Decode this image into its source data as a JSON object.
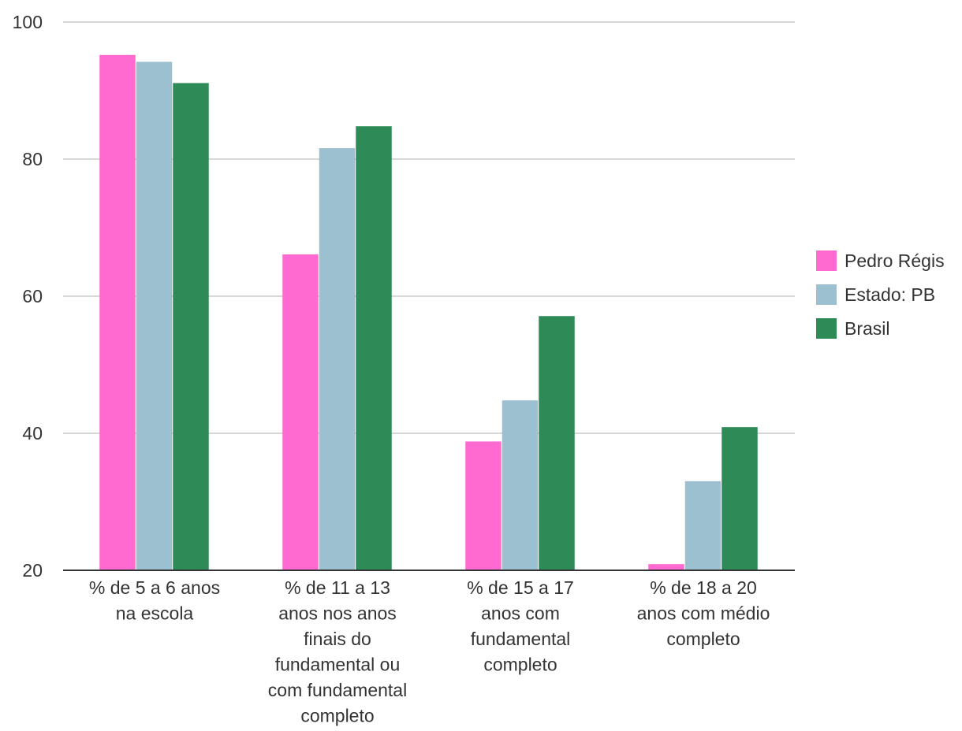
{
  "chart_data": {
    "type": "bar",
    "title": "",
    "xlabel": "",
    "ylabel": "",
    "ylim": [
      20,
      100
    ],
    "yticks": [
      "20",
      "40",
      "60",
      "80",
      "100"
    ],
    "grid": true,
    "legend_position": "right",
    "categories": [
      [
        "% de 5 a 6 anos",
        "na escola"
      ],
      [
        "% de 11 a 13",
        "anos nos anos",
        "finais do",
        "fundamental ou",
        "com fundamental",
        "completo"
      ],
      [
        "% de 15 a 17",
        "anos com",
        "fundamental",
        "completo"
      ],
      [
        "% de 18 a 20",
        "anos com médio",
        "completo"
      ]
    ],
    "series": [
      {
        "name": "Pedro Régis",
        "color": "#ff6ad0",
        "values": [
          95.2,
          66.1,
          38.8,
          20.9
        ]
      },
      {
        "name": "Estado: PB",
        "color": "#9cc0cf",
        "values": [
          94.2,
          81.6,
          44.8,
          33.0
        ]
      },
      {
        "name": "Brasil",
        "color": "#2e8b57",
        "values": [
          91.1,
          84.8,
          57.1,
          40.9
        ]
      }
    ]
  }
}
